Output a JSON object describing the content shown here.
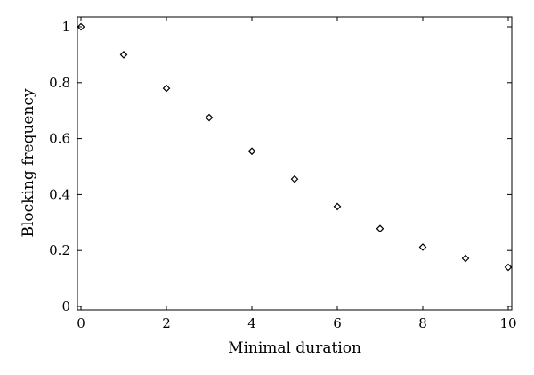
{
  "chart_data": {
    "type": "scatter",
    "xlabel": "Minimal duration",
    "ylabel": "Blocking frequency",
    "xlim": [
      0,
      10
    ],
    "ylim": [
      0,
      1
    ],
    "xticks": [
      0,
      2,
      4,
      6,
      8,
      10
    ],
    "yticks": [
      0,
      0.2,
      0.4,
      0.6,
      0.8,
      1
    ],
    "xtick_labels": [
      "0",
      "2",
      "4",
      "6",
      "8",
      "10"
    ],
    "ytick_labels": [
      "0",
      "0.2",
      "0.4",
      "0.6",
      "0.8",
      "1"
    ],
    "marker": "diamond",
    "grid": false,
    "series": [
      {
        "x": [
          0,
          1,
          2,
          3,
          4,
          5,
          6,
          7,
          8,
          9,
          10
        ],
        "y": [
          1.0,
          0.9,
          0.78,
          0.675,
          0.555,
          0.455,
          0.357,
          0.278,
          0.212,
          0.172,
          0.14
        ]
      }
    ]
  }
}
